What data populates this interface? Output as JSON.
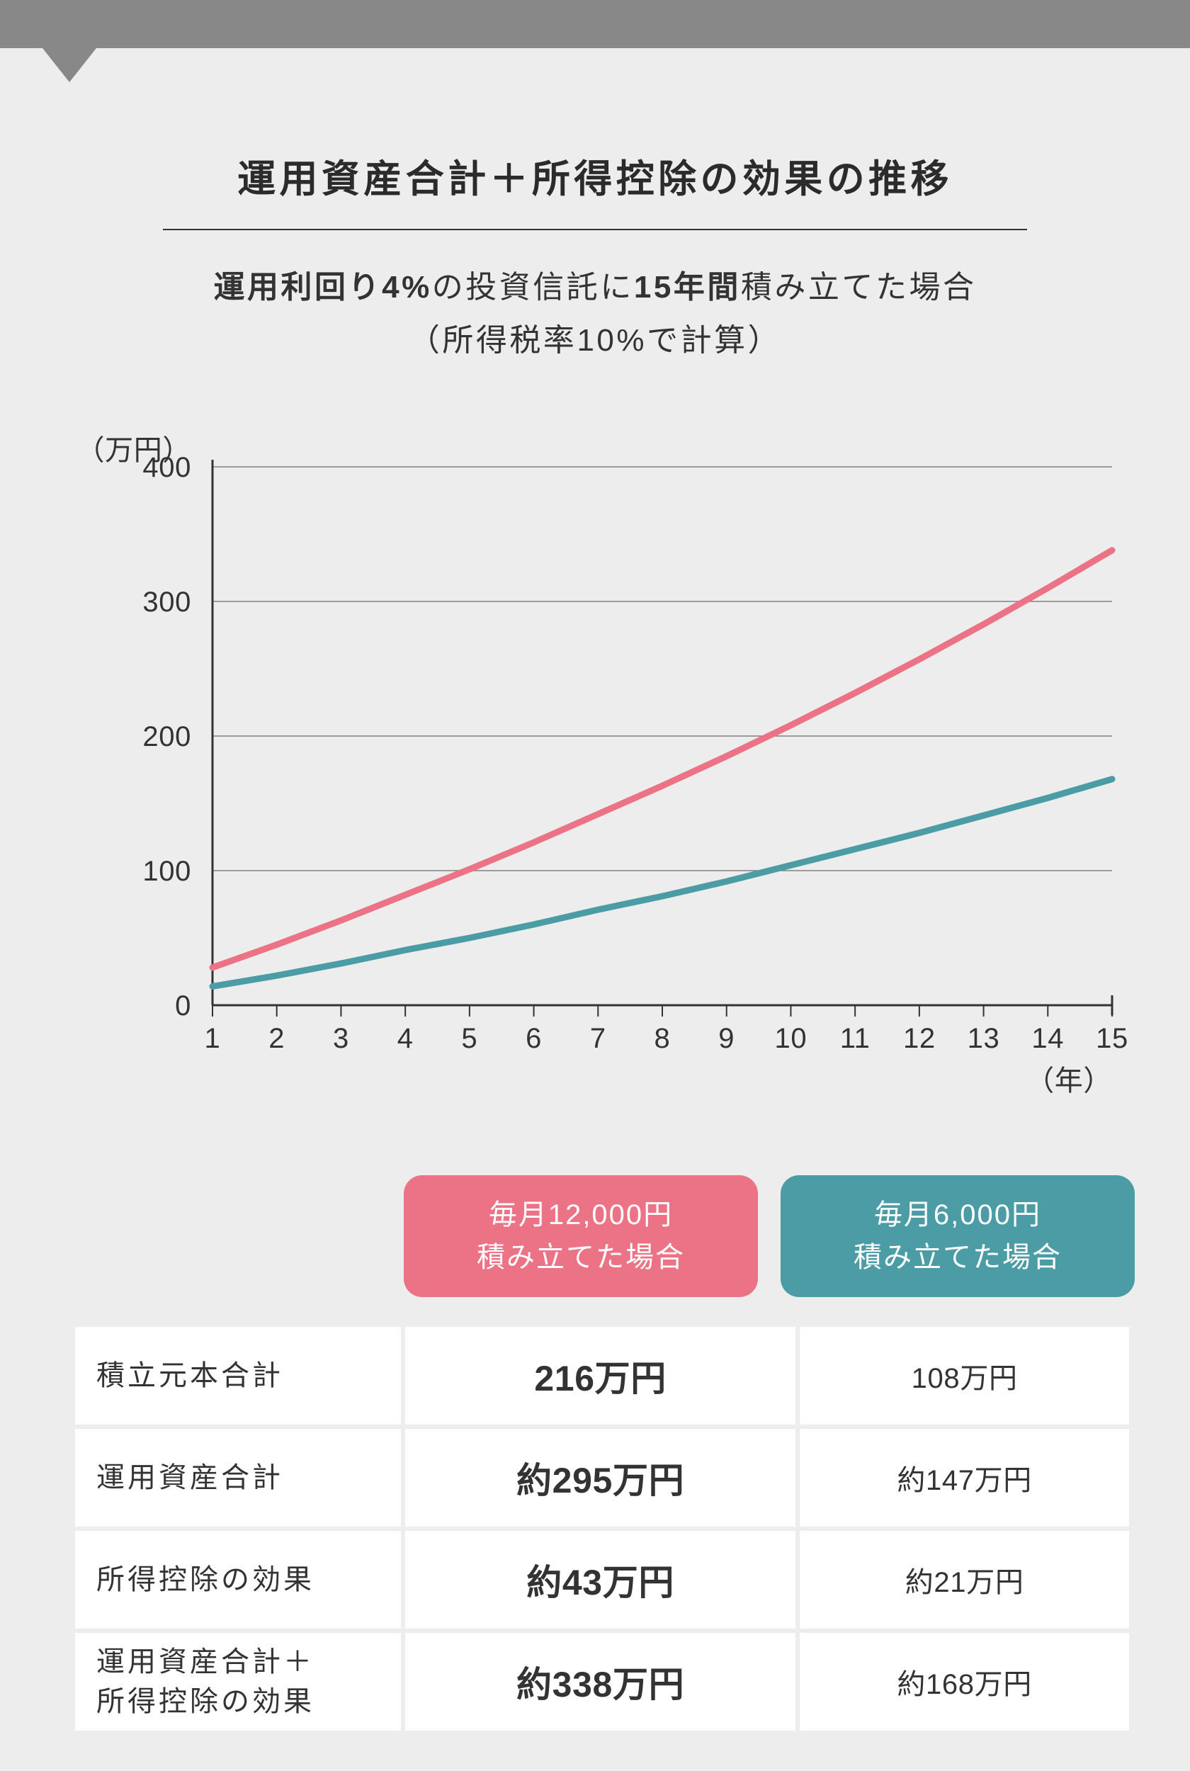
{
  "header": {
    "title": "運用資産合計＋所得控除の効果の推移",
    "subtitle_parts": [
      {
        "t": "運用利回り4%",
        "b": true
      },
      {
        "t": "の投資信託に",
        "b": false
      },
      {
        "t": "15年間",
        "b": true
      },
      {
        "t": "積み立てた場合",
        "b": false
      }
    ],
    "subtitle_line2": "（所得税率10%で計算）"
  },
  "chart": {
    "type": "line",
    "y_unit_label": "（万円）",
    "x_unit_label": "（年）",
    "x_values": [
      1,
      2,
      3,
      4,
      5,
      6,
      7,
      8,
      9,
      10,
      11,
      12,
      13,
      14,
      15
    ],
    "y_ticks": [
      0,
      100,
      200,
      300,
      400
    ],
    "ylim": [
      0,
      400
    ],
    "series": [
      {
        "name": "毎月12,000円積み立てた場合",
        "color": "#ec7286",
        "values": [
          28,
          45,
          63,
          82,
          101,
          121,
          142,
          163,
          185,
          208,
          232,
          257,
          283,
          310,
          338
        ]
      },
      {
        "name": "毎月6,000円積み立てた場合",
        "color": "#4b9ca4",
        "values": [
          14,
          22,
          31,
          41,
          50,
          60,
          71,
          81,
          92,
          104,
          116,
          128,
          141,
          154,
          168
        ]
      }
    ],
    "axis_color": "#333333",
    "grid_color": "#6b6b6b",
    "line_width": 9,
    "background": "#ededed",
    "tick_font_size": 40,
    "unit_font_size": 40
  },
  "table": {
    "columns": [
      {
        "badge_line1": "毎月12,000円",
        "badge_line2": "積み立てた場合",
        "badge_bg": "#ec7286",
        "strong": true
      },
      {
        "badge_line1": "毎月6,000円",
        "badge_line2": "積み立てた場合",
        "badge_bg": "#4b9ca4",
        "strong": false
      }
    ],
    "rows": [
      {
        "label": "積立元本合計",
        "values": [
          "216万円",
          "108万円"
        ]
      },
      {
        "label": "運用資産合計",
        "values": [
          "約295万円",
          "約147万円"
        ]
      },
      {
        "label": "所得控除の効果",
        "values": [
          "約43万円",
          "約21万円"
        ]
      },
      {
        "label": "運用資産合計＋\n所得控除の効果",
        "values": [
          "約338万円",
          "約168万円"
        ]
      }
    ]
  }
}
